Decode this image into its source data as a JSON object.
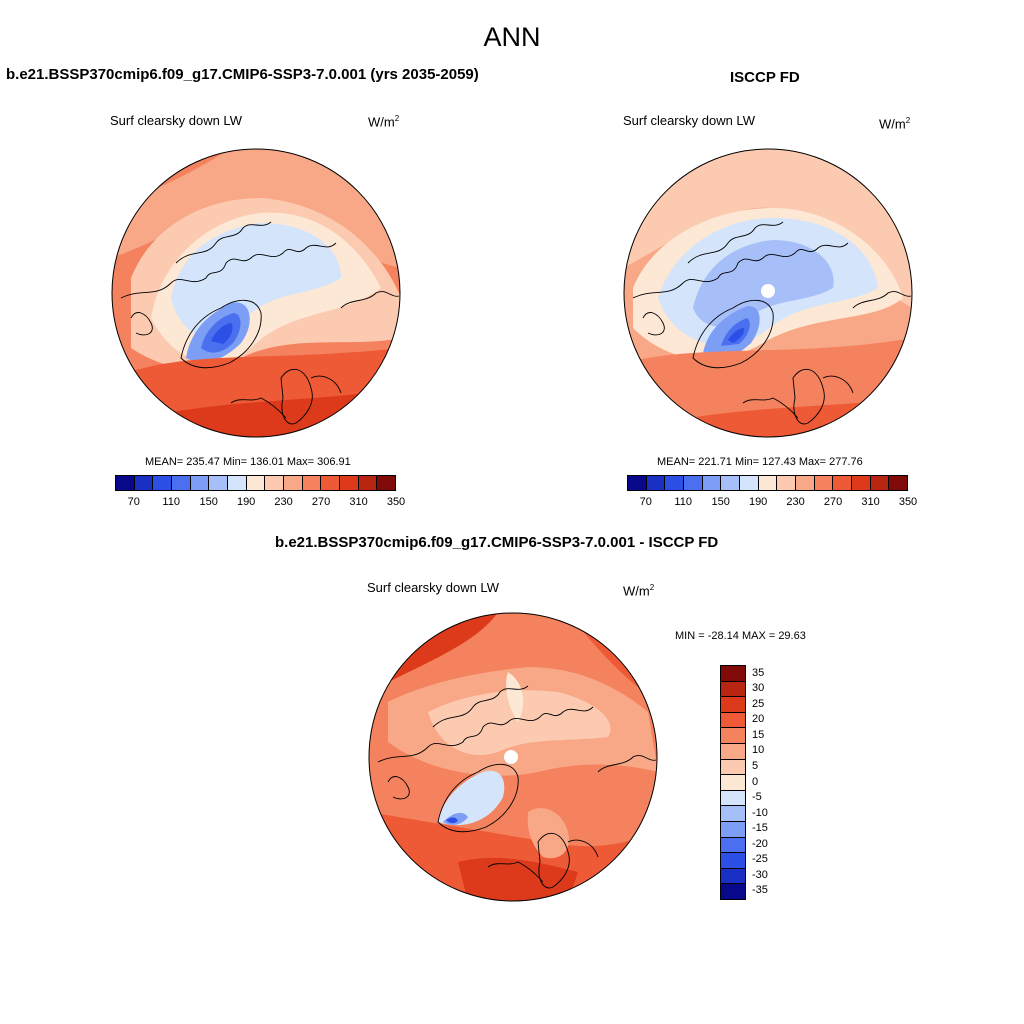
{
  "main_title": "ANN",
  "panels": {
    "model": {
      "title": "b.e21.BSSP370cmip6.f09_g17.CMIP6-SSP3-7.0.001 (yrs 2035-2059)",
      "subtitle": "Surf clearsky down LW",
      "units_base": "W/m",
      "units_exp": "2",
      "stats": "MEAN= 235.47  Min= 136.01  Max= 306.91"
    },
    "obs": {
      "title": "ISCCP FD",
      "subtitle": "Surf clearsky down LW",
      "units_base": "W/m",
      "units_exp": "2",
      "stats": "MEAN= 221.71  Min= 127.43  Max= 277.76"
    },
    "diff": {
      "title": "b.e21.BSSP370cmip6.f09_g17.CMIP6-SSP3-7.0.001 - ISCCP FD",
      "subtitle": "Surf clearsky down LW",
      "units_base": "W/m",
      "units_exp": "2",
      "stats": "MIN = -28.14 MAX =  29.63"
    }
  },
  "colorbar_abs": {
    "colors": [
      "#08088a",
      "#1a2fc4",
      "#2c4fe6",
      "#4a70f0",
      "#7d9ef5",
      "#a7bff8",
      "#d3e4fb",
      "#fde8d6",
      "#fbcab0",
      "#f8a886",
      "#f4825e",
      "#ee5a36",
      "#dd3a1c",
      "#b82612",
      "#800a08"
    ],
    "labels": [
      "70",
      "110",
      "150",
      "190",
      "230",
      "270",
      "310",
      "350"
    ]
  },
  "colorbar_diff": {
    "colors": [
      "#800a08",
      "#b82612",
      "#dd3a1c",
      "#ee5a36",
      "#f4825e",
      "#f8a886",
      "#fbcab0",
      "#fde8d6",
      "#d3e4fb",
      "#a7bff8",
      "#7d9ef5",
      "#4a70f0",
      "#2c4fe6",
      "#1a2fc4",
      "#08088a"
    ],
    "labels": [
      "35",
      "30",
      "25",
      "20",
      "15",
      "10",
      "5",
      "0",
      "-5",
      "-10",
      "-15",
      "-20",
      "-25",
      "-30",
      "-35"
    ]
  }
}
